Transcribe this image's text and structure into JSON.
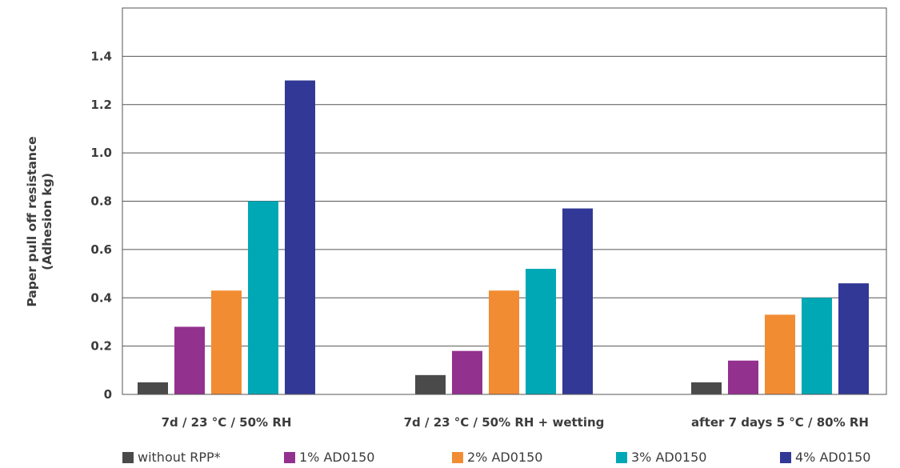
{
  "chart_data": {
    "type": "bar",
    "categories": [
      "7d / 23 °C / 50% RH",
      "7d / 23 °C / 50% RH + wetting",
      "after 7 days 5 °C / 80% RH"
    ],
    "series": [
      {
        "name": "without RPP*",
        "color": "#4a4a4a",
        "values": [
          0.05,
          0.08,
          0.05
        ]
      },
      {
        "name": "1% AD0150",
        "color": "#93318f",
        "values": [
          0.28,
          0.18,
          0.14
        ]
      },
      {
        "name": "2% AD0150",
        "color": "#f28c33",
        "values": [
          0.43,
          0.43,
          0.33
        ]
      },
      {
        "name": "3% AD0150",
        "color": "#00a8b5",
        "values": [
          0.8,
          0.52,
          0.4
        ]
      },
      {
        "name": "4% AD0150",
        "color": "#323896",
        "values": [
          1.3,
          0.77,
          0.46
        ]
      }
    ],
    "yticks": [
      "0",
      "0.2",
      "0.4",
      "0.6",
      "0.8",
      "1.0",
      "1.2",
      "1.4"
    ],
    "ylim": [
      0,
      1.6
    ],
    "ylabel_line1": "Paper pull off resistance",
    "ylabel_line2": "(Adhesion kg)",
    "grid": true,
    "legend_position": "bottom"
  }
}
